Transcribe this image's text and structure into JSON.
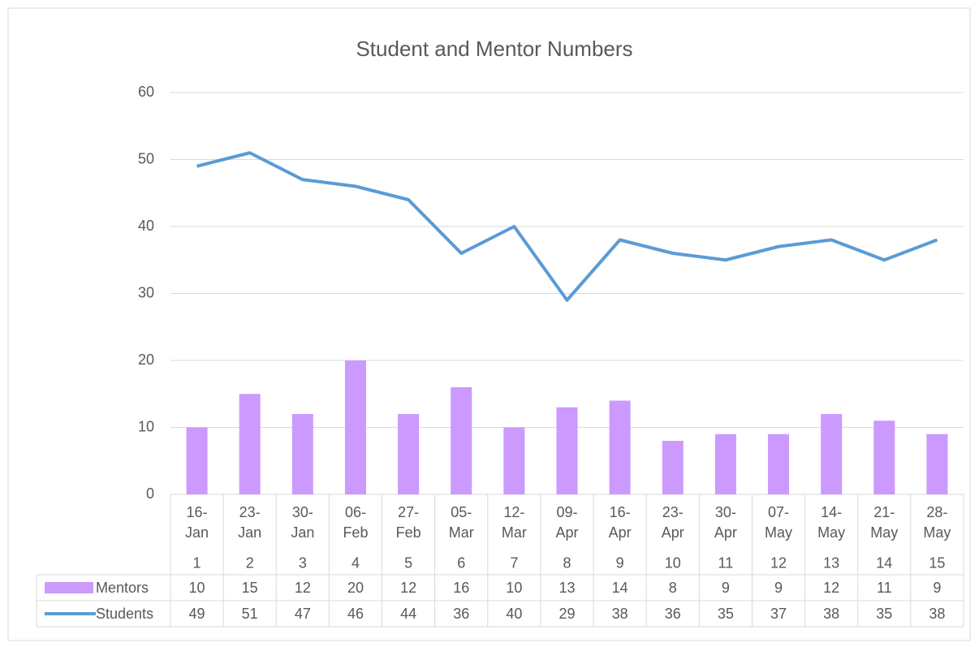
{
  "chart_data": {
    "type": "combo",
    "title": "Student and Mentor Numbers",
    "categories": [
      "16-Jan",
      "23-Jan",
      "30-Jan",
      "06-Feb",
      "27-Feb",
      "05-Mar",
      "12-Mar",
      "09-Apr",
      "16-Apr",
      "23-Apr",
      "30-Apr",
      "07-May",
      "14-May",
      "21-May",
      "28-May"
    ],
    "subcategories": [
      1,
      2,
      3,
      4,
      5,
      6,
      7,
      8,
      9,
      10,
      11,
      12,
      13,
      14,
      15
    ],
    "series": [
      {
        "name": "Mentors",
        "type": "bar",
        "color": "#cc99ff",
        "values": [
          10,
          15,
          12,
          20,
          12,
          16,
          10,
          13,
          14,
          8,
          9,
          9,
          12,
          11,
          9
        ]
      },
      {
        "name": "Students",
        "type": "line",
        "color": "#5b9bd5",
        "values": [
          49,
          51,
          47,
          46,
          44,
          36,
          40,
          29,
          38,
          36,
          35,
          37,
          38,
          35,
          38
        ]
      }
    ],
    "ylim": [
      0,
      60
    ],
    "yticks": [
      0,
      10,
      20,
      30,
      40,
      50,
      60
    ],
    "grid": true
  }
}
